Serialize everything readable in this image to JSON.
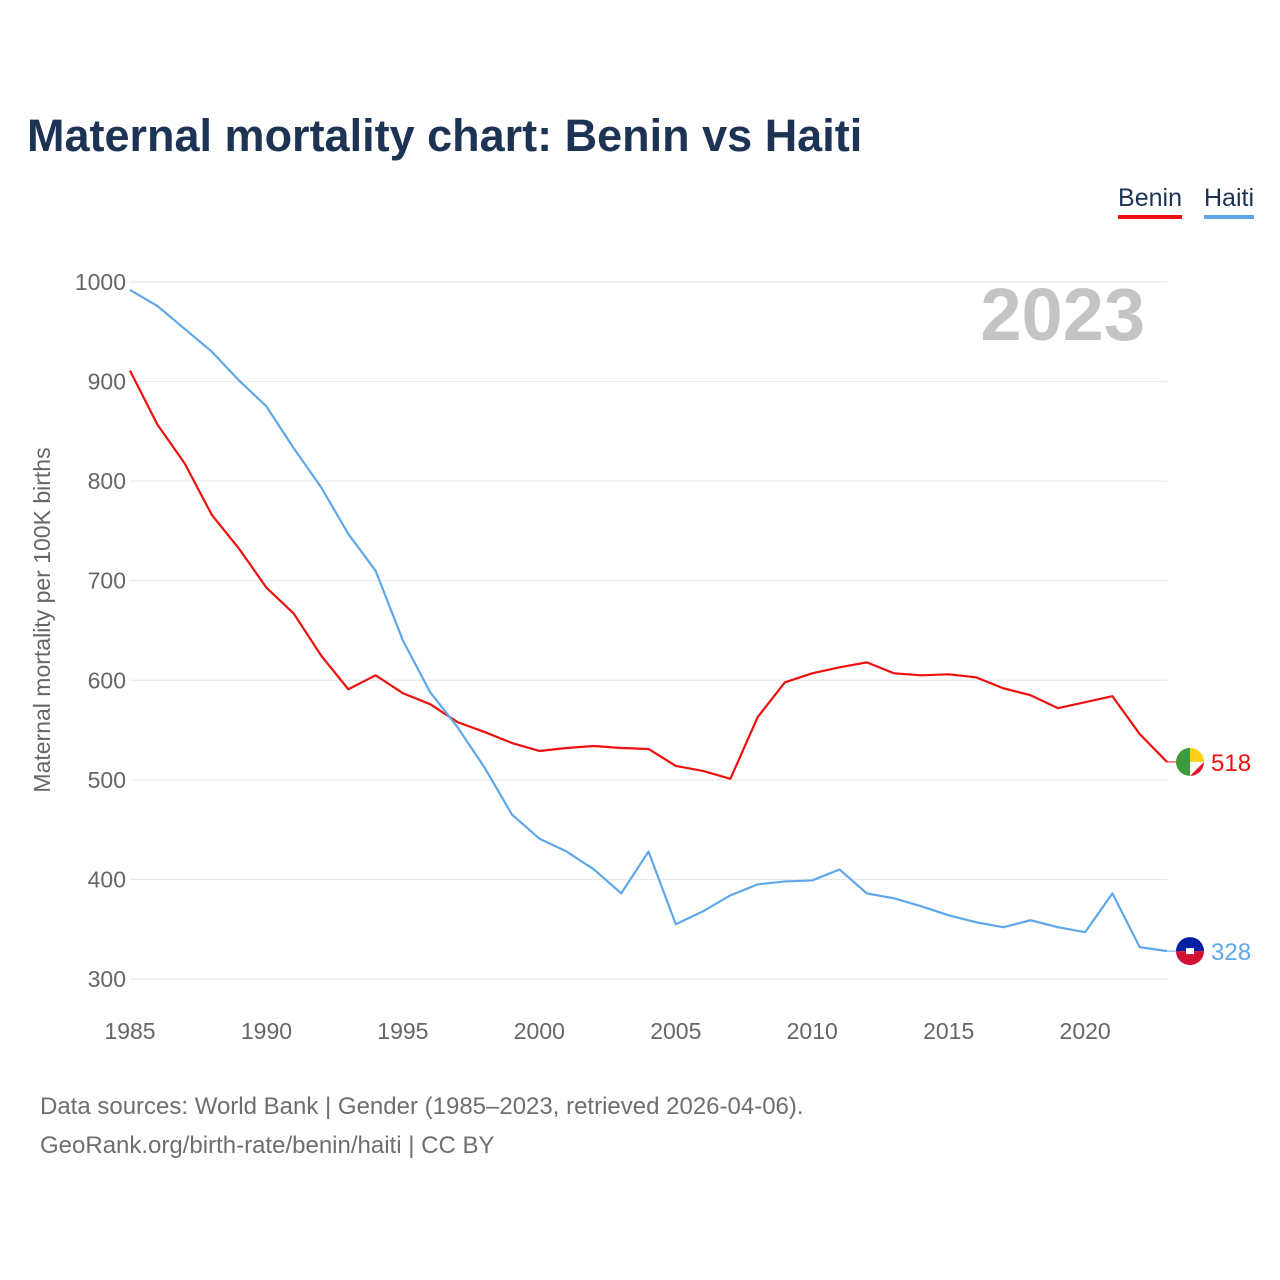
{
  "title": "Maternal mortality chart: Benin vs Haiti",
  "footer": {
    "line1": "Data sources: World Bank | Gender (1985–2023, retrieved 2026-04-06).",
    "line2": "GeoRank.org/birth-rate/benin/haiti | CC BY"
  },
  "chart_data": {
    "type": "line",
    "title": "Maternal mortality chart: Benin vs Haiti",
    "year_label": "2023",
    "ylabel": "Maternal mortality per 100K births",
    "xlabel": "",
    "ylim": [
      300,
      1000
    ],
    "xlim": [
      1985,
      2023
    ],
    "yticks": [
      "300",
      "400",
      "500",
      "600",
      "700",
      "800",
      "900",
      "1000"
    ],
    "xticks": [
      "1985",
      "1990",
      "1995",
      "2000",
      "2005",
      "2010",
      "2015",
      "2020"
    ],
    "grid": true,
    "legend_position": "top-right",
    "x": [
      1985,
      1986,
      1987,
      1988,
      1989,
      1990,
      1991,
      1992,
      1993,
      1994,
      1995,
      1996,
      1997,
      1998,
      1999,
      2000,
      2001,
      2002,
      2003,
      2004,
      2005,
      2006,
      2007,
      2008,
      2009,
      2010,
      2011,
      2012,
      2013,
      2014,
      2015,
      2016,
      2017,
      2018,
      2019,
      2020,
      2021,
      2022,
      2023
    ],
    "series": [
      {
        "name": "Benin",
        "color": "#ee0f0f",
        "end_label": "518",
        "values": [
          911,
          857,
          818,
          766,
          732,
          693,
          667,
          625,
          591,
          605,
          587,
          576,
          558,
          548,
          537,
          529,
          532,
          534,
          532,
          531,
          514,
          509,
          501,
          563,
          598,
          607,
          613,
          618,
          607,
          605,
          606,
          603,
          592,
          585,
          572,
          578,
          584,
          546,
          518
        ]
      },
      {
        "name": "Haiti",
        "color": "#5ea8ea",
        "end_label": "328",
        "values": [
          992,
          976,
          953,
          930,
          901,
          875,
          833,
          794,
          747,
          710,
          640,
          588,
          553,
          512,
          465,
          441,
          428,
          410,
          386,
          428,
          355,
          368,
          384,
          395,
          398,
          399,
          410,
          386,
          381,
          373,
          364,
          357,
          352,
          359,
          352,
          347,
          386,
          332,
          328
        ]
      }
    ]
  }
}
